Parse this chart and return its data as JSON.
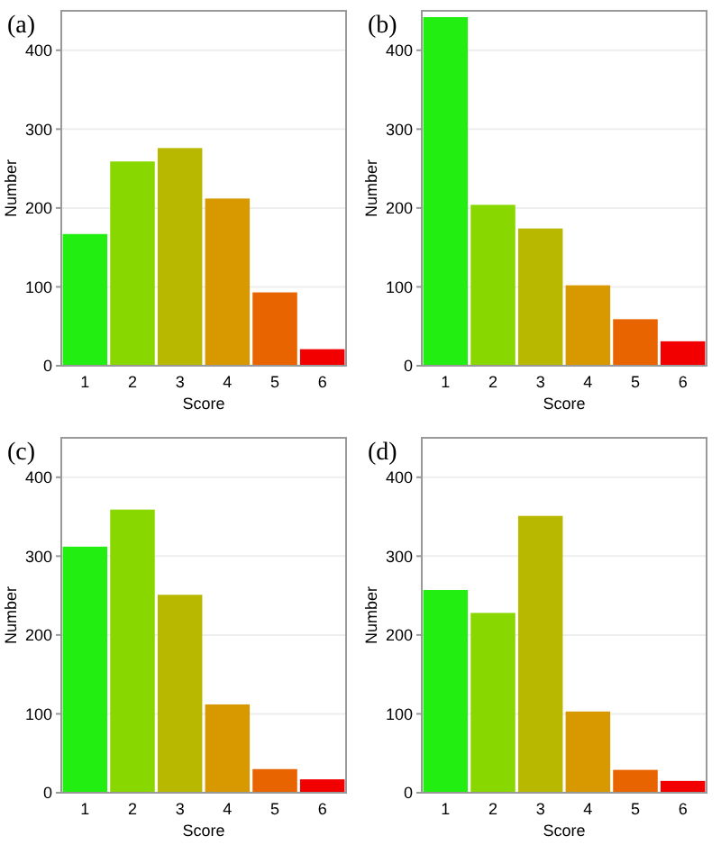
{
  "chart_data": [
    {
      "type": "bar",
      "title": "(a)",
      "xlabel": "Score",
      "ylabel": "Number",
      "categories": [
        "1",
        "2",
        "3",
        "4",
        "5",
        "6"
      ],
      "values": [
        167,
        259,
        276,
        212,
        93,
        21
      ],
      "colors": [
        "#22ee11",
        "#88d800",
        "#b8b800",
        "#d89800",
        "#e86400",
        "#f20000"
      ],
      "ylim": [
        0,
        450
      ],
      "yticks": [
        0,
        100,
        200,
        300,
        400
      ],
      "grid": "y"
    },
    {
      "type": "bar",
      "title": "(b)",
      "xlabel": "Score",
      "ylabel": "Number",
      "categories": [
        "1",
        "2",
        "3",
        "4",
        "5",
        "6"
      ],
      "values": [
        442,
        204,
        174,
        102,
        59,
        31
      ],
      "colors": [
        "#22ee11",
        "#88d800",
        "#b8b800",
        "#d89800",
        "#e86400",
        "#f20000"
      ],
      "ylim": [
        0,
        450
      ],
      "yticks": [
        0,
        100,
        200,
        300,
        400
      ],
      "grid": "y"
    },
    {
      "type": "bar",
      "title": "(c)",
      "xlabel": "Score",
      "ylabel": "Number",
      "categories": [
        "1",
        "2",
        "3",
        "4",
        "5",
        "6"
      ],
      "values": [
        312,
        359,
        251,
        112,
        30,
        17
      ],
      "colors": [
        "#22ee11",
        "#88d800",
        "#b8b800",
        "#d89800",
        "#e86400",
        "#f20000"
      ],
      "ylim": [
        0,
        450
      ],
      "yticks": [
        0,
        100,
        200,
        300,
        400
      ],
      "grid": "y"
    },
    {
      "type": "bar",
      "title": "(d)",
      "xlabel": "Score",
      "ylabel": "Number",
      "categories": [
        "1",
        "2",
        "3",
        "4",
        "5",
        "6"
      ],
      "values": [
        257,
        228,
        351,
        103,
        29,
        15
      ],
      "colors": [
        "#22ee11",
        "#88d800",
        "#b8b800",
        "#d89800",
        "#e86400",
        "#f20000"
      ],
      "ylim": [
        0,
        450
      ],
      "yticks": [
        0,
        100,
        200,
        300,
        400
      ],
      "grid": "y"
    }
  ]
}
